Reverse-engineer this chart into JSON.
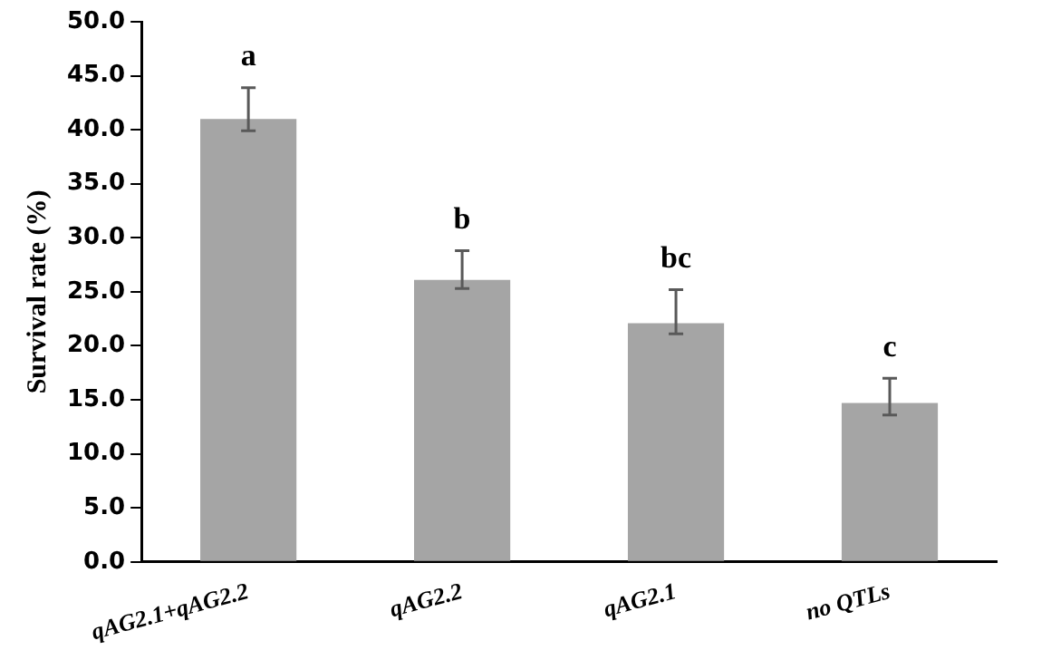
{
  "chart_data": {
    "type": "bar",
    "ylabel": "Survival rate (%)",
    "categories": [
      "qAG2.1+qAG2.2",
      "qAG2.2",
      "qAG2.1",
      "no QTLs"
    ],
    "values": [
      41.0,
      26.1,
      22.1,
      14.7
    ],
    "errors": [
      [
        39.9,
        43.9
      ],
      [
        25.3,
        28.8
      ],
      [
        21.1,
        25.2
      ],
      [
        13.6,
        17.0
      ]
    ],
    "color": "#a5a5a5",
    "ylim": [
      0,
      50
    ],
    "yticks": [
      {
        "value": 0,
        "label": "0.0"
      },
      {
        "value": 5,
        "label": "5.0"
      },
      {
        "value": 10,
        "label": "10.0"
      },
      {
        "value": 15,
        "label": "15.0"
      },
      {
        "value": 20,
        "label": "20.0"
      },
      {
        "value": 25,
        "label": "25.0"
      },
      {
        "value": 30,
        "label": "30.0"
      },
      {
        "value": 35,
        "label": "35.0"
      },
      {
        "value": 40,
        "label": "40.0"
      },
      {
        "value": 45,
        "label": "45.0"
      },
      {
        "value": 50,
        "label": "50.0"
      }
    ],
    "grid": false,
    "legend": false,
    "annotations": [
      {
        "text": "a",
        "x": "qAG2.1+qAG2.2",
        "y": 43.9
      },
      {
        "text": "b",
        "x": "qAG2.2",
        "y": 28.8
      },
      {
        "text": "bc",
        "x": "qAG2.1",
        "y": 25.2
      },
      {
        "text": "c",
        "x": "no QTLs",
        "y": 17.0
      }
    ]
  }
}
